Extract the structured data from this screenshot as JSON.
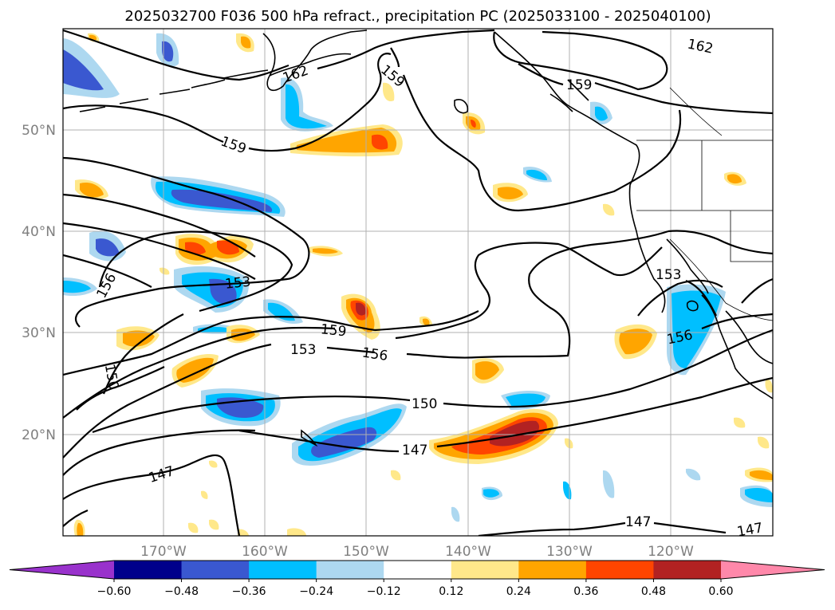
{
  "title": "2025032700 F036 500 hPa refract., precipitation PC (2025033100 - 2025040100)",
  "map": {
    "lon_labels": [
      "170°W",
      "160°W",
      "150°W",
      "140°W",
      "130°W",
      "120°W"
    ],
    "lat_labels": [
      "50°N",
      "40°N",
      "30°N",
      "20°N"
    ],
    "contour_labels": [
      "162",
      "162",
      "159",
      "159",
      "159",
      "159",
      "159",
      "156",
      "156",
      "156",
      "156",
      "153",
      "153",
      "153",
      "150",
      "150",
      "147",
      "147",
      "147",
      "147"
    ],
    "grid": true,
    "coastlines": true
  },
  "colorbar": {
    "ticks": [
      "−0.60",
      "−0.48",
      "−0.36",
      "−0.24",
      "−0.12",
      "0.12",
      "0.24",
      "0.36",
      "0.48",
      "0.60"
    ],
    "colors": [
      "#9932cc",
      "#00008b",
      "#3a58d0",
      "#00bfff",
      "#add8f0",
      "#ffffff",
      "#ffe88a",
      "#ffa500",
      "#ff4500",
      "#b22222",
      "#ff88aa"
    ],
    "extend": "both"
  },
  "fill_colors": {
    "neg_weak": "#add8f0",
    "neg_mid": "#00bfff",
    "neg_strong": "#3a58d0",
    "pos_weak": "#ffe88a",
    "pos_mid": "#ffa500",
    "pos_strong": "#ff4500",
    "pos_vstrong": "#b22222"
  }
}
